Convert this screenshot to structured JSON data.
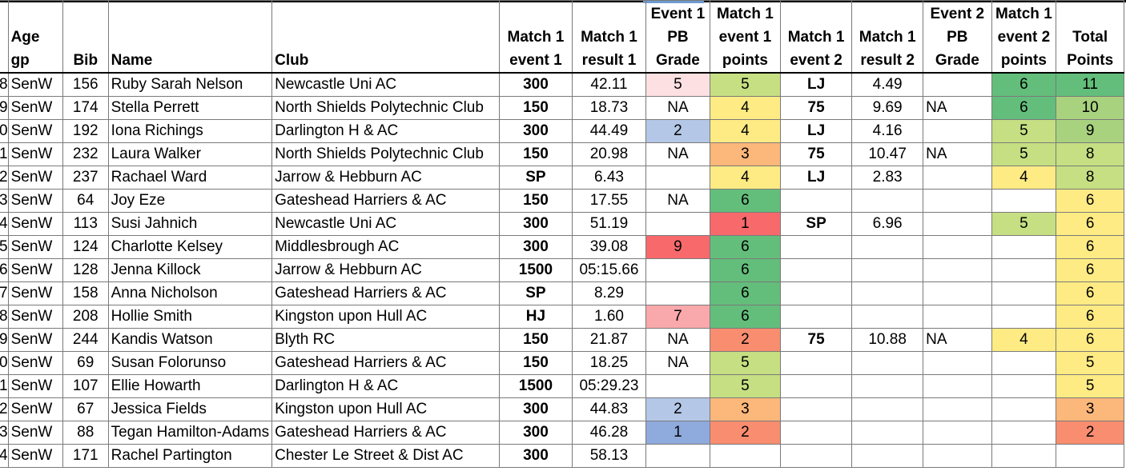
{
  "colors": {
    "green_dark": "#63be7b",
    "green_mid": "#a9d27f",
    "green_light": "#c5df82",
    "yellow": "#ffeb84",
    "orange": "#fcb77a",
    "red_orange": "#f98d6f",
    "red": "#f8696b",
    "pink_light": "#fde0e1",
    "pink": "#f9a8ab",
    "blue_light": "#b4c7e7",
    "blue": "#8faadc"
  },
  "headers": {
    "row_num": "",
    "age_gp": "Age gp",
    "bib": "Bib",
    "name": "Name",
    "club": "Club",
    "m1e1": [
      "Match 1",
      "event 1"
    ],
    "m1r1": [
      "Match 1",
      "result 1"
    ],
    "e1pb": [
      "Event 1",
      "PB",
      "Grade"
    ],
    "m1e1p": [
      "Match 1",
      "event 1",
      "points"
    ],
    "m1e2": [
      "Match 1",
      "event 2"
    ],
    "m1r2": [
      "Match 1",
      "result 2"
    ],
    "e2pb": [
      "Event 2",
      "PB",
      "Grade"
    ],
    "m1e2p": [
      "Match 1",
      "event 2",
      "points"
    ],
    "total": [
      "Total",
      "Points"
    ]
  },
  "rows": [
    {
      "rn": "8",
      "age": "SenW",
      "bib": "156",
      "name": "Ruby Sarah Nelson",
      "club": "Newcastle Uni AC",
      "e1": "300",
      "r1": "42.11",
      "pb1": "5",
      "pb1c": "pink_light",
      "p1": "5",
      "p1c": "green_light",
      "e2": "LJ",
      "r2": "4.49",
      "pb2": "",
      "p2": "6",
      "p2c": "green_dark",
      "tot": "11",
      "totc": "green_dark"
    },
    {
      "rn": "9",
      "age": "SenW",
      "bib": "174",
      "name": "Stella Perrett",
      "club": "North Shields Polytechnic Club",
      "e1": "150",
      "r1": "18.73",
      "pb1": "NA",
      "pb1c": "",
      "p1": "4",
      "p1c": "yellow",
      "e2": "75",
      "r2": "9.69",
      "pb2": "NA",
      "p2": "6",
      "p2c": "green_dark",
      "tot": "10",
      "totc": "green_mid"
    },
    {
      "rn": "0",
      "age": "SenW",
      "bib": "192",
      "name": "Iona Richings",
      "club": "Darlington H & AC",
      "e1": "300",
      "r1": "44.49",
      "pb1": "2",
      "pb1c": "blue_light",
      "p1": "4",
      "p1c": "yellow",
      "e2": "LJ",
      "r2": "4.16",
      "pb2": "",
      "p2": "5",
      "p2c": "green_light",
      "tot": "9",
      "totc": "green_mid"
    },
    {
      "rn": "1",
      "age": "SenW",
      "bib": "232",
      "name": "Laura Walker",
      "club": "North Shields Polytechnic Club",
      "e1": "150",
      "r1": "20.98",
      "pb1": "NA",
      "pb1c": "",
      "p1": "3",
      "p1c": "orange",
      "e2": "75",
      "r2": "10.47",
      "pb2": "NA",
      "p2": "5",
      "p2c": "green_light",
      "tot": "8",
      "totc": "green_light"
    },
    {
      "rn": "2",
      "age": "SenW",
      "bib": "237",
      "name": "Rachael Ward",
      "club": "Jarrow & Hebburn AC",
      "e1": "SP",
      "r1": "6.43",
      "pb1": "",
      "pb1c": "",
      "p1": "4",
      "p1c": "yellow",
      "e2": "LJ",
      "r2": "2.83",
      "pb2": "",
      "p2": "4",
      "p2c": "yellow",
      "tot": "8",
      "totc": "green_light"
    },
    {
      "rn": "3",
      "age": "SenW",
      "bib": "64",
      "name": "Joy Eze",
      "club": "Gateshead Harriers & AC",
      "e1": "150",
      "r1": "17.55",
      "pb1": "NA",
      "pb1c": "",
      "p1": "6",
      "p1c": "green_dark",
      "e2": "",
      "r2": "",
      "pb2": "",
      "p2": "",
      "p2c": "",
      "tot": "6",
      "totc": "yellow"
    },
    {
      "rn": "4",
      "age": "SenW",
      "bib": "113",
      "name": "Susi Jahnich",
      "club": "Newcastle Uni AC",
      "e1": "300",
      "r1": "51.19",
      "pb1": "",
      "pb1c": "",
      "p1": "1",
      "p1c": "red",
      "e2": "SP",
      "r2": "6.96",
      "pb2": "",
      "p2": "5",
      "p2c": "green_light",
      "tot": "6",
      "totc": "yellow"
    },
    {
      "rn": "5",
      "age": "SenW",
      "bib": "124",
      "name": "Charlotte Kelsey",
      "club": "Middlesbrough AC",
      "e1": "300",
      "r1": "39.08",
      "pb1": "9",
      "pb1c": "red",
      "p1": "6",
      "p1c": "green_dark",
      "e2": "",
      "r2": "",
      "pb2": "",
      "p2": "",
      "p2c": "",
      "tot": "6",
      "totc": "yellow"
    },
    {
      "rn": "6",
      "age": "SenW",
      "bib": "128",
      "name": "Jenna Killock",
      "club": "Jarrow & Hebburn AC",
      "e1": "1500",
      "r1": "05:15.66",
      "pb1": "",
      "pb1c": "",
      "p1": "6",
      "p1c": "green_dark",
      "e2": "",
      "r2": "",
      "pb2": "",
      "p2": "",
      "p2c": "",
      "tot": "6",
      "totc": "yellow"
    },
    {
      "rn": "7",
      "age": "SenW",
      "bib": "158",
      "name": "Anna Nicholson",
      "club": "Gateshead Harriers & AC",
      "e1": "SP",
      "r1": "8.29",
      "pb1": "",
      "pb1c": "",
      "p1": "6",
      "p1c": "green_dark",
      "e2": "",
      "r2": "",
      "pb2": "",
      "p2": "",
      "p2c": "",
      "tot": "6",
      "totc": "yellow"
    },
    {
      "rn": "8",
      "age": "SenW",
      "bib": "208",
      "name": "Hollie Smith",
      "club": "Kingston upon Hull AC",
      "e1": "HJ",
      "r1": "1.60",
      "pb1": "7",
      "pb1c": "pink",
      "p1": "6",
      "p1c": "green_dark",
      "e2": "",
      "r2": "",
      "pb2": "",
      "p2": "",
      "p2c": "",
      "tot": "6",
      "totc": "yellow"
    },
    {
      "rn": "9",
      "age": "SenW",
      "bib": "244",
      "name": "Kandis Watson",
      "club": "Blyth RC",
      "e1": "150",
      "r1": "21.87",
      "pb1": "NA",
      "pb1c": "",
      "p1": "2",
      "p1c": "red_orange",
      "e2": "75",
      "r2": "10.88",
      "pb2": "NA",
      "p2": "4",
      "p2c": "yellow",
      "tot": "6",
      "totc": "yellow"
    },
    {
      "rn": "0",
      "age": "SenW",
      "bib": "69",
      "name": "Susan Folorunso",
      "club": "Gateshead Harriers & AC",
      "e1": "150",
      "r1": "18.25",
      "pb1": "NA",
      "pb1c": "",
      "p1": "5",
      "p1c": "green_light",
      "e2": "",
      "r2": "",
      "pb2": "",
      "p2": "",
      "p2c": "",
      "tot": "5",
      "totc": "yellow"
    },
    {
      "rn": "1",
      "age": "SenW",
      "bib": "107",
      "name": "Ellie Howarth",
      "club": "Darlington H & AC",
      "e1": "1500",
      "r1": "05:29.23",
      "pb1": "",
      "pb1c": "",
      "p1": "5",
      "p1c": "green_light",
      "e2": "",
      "r2": "",
      "pb2": "",
      "p2": "",
      "p2c": "",
      "tot": "5",
      "totc": "yellow"
    },
    {
      "rn": "2",
      "age": "SenW",
      "bib": "67",
      "name": "Jessica Fields",
      "club": "Kingston upon Hull AC",
      "e1": "300",
      "r1": "44.83",
      "pb1": "2",
      "pb1c": "blue_light",
      "p1": "3",
      "p1c": "orange",
      "e2": "",
      "r2": "",
      "pb2": "",
      "p2": "",
      "p2c": "",
      "tot": "3",
      "totc": "orange"
    },
    {
      "rn": "3",
      "age": "SenW",
      "bib": "88",
      "name": "Tegan Hamilton-Adams",
      "club": "Gateshead Harriers & AC",
      "e1": "300",
      "r1": "46.28",
      "pb1": "1",
      "pb1c": "blue",
      "p1": "2",
      "p1c": "red_orange",
      "e2": "",
      "r2": "",
      "pb2": "",
      "p2": "",
      "p2c": "",
      "tot": "2",
      "totc": "red_orange"
    },
    {
      "rn": "4",
      "age": "SenW",
      "bib": "171",
      "name": "Rachel Partington",
      "club": "Chester Le Street & Dist AC",
      "e1": "300",
      "r1": "58.13",
      "pb1": "",
      "pb1c": "",
      "p1": "",
      "p1c": "",
      "e2": "",
      "r2": "",
      "pb2": "",
      "p2": "",
      "p2c": "",
      "tot": "",
      "totc": ""
    }
  ]
}
